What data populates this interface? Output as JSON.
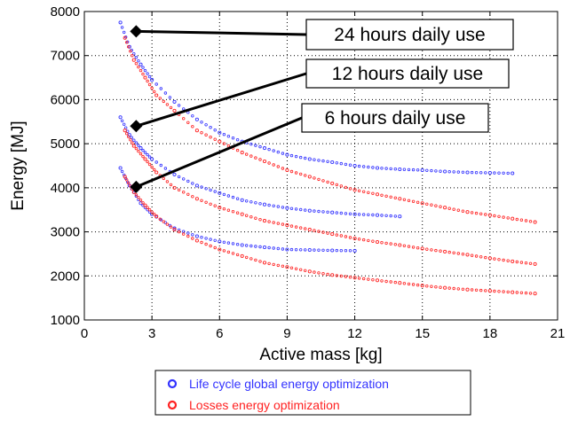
{
  "chart_data": {
    "type": "scatter",
    "title": "",
    "xlabel": "Active mass [kg]",
    "ylabel": "Energy [MJ]",
    "xlim": [
      0,
      21
    ],
    "ylim": [
      1000,
      8000
    ],
    "xticks": [
      0,
      3,
      6,
      9,
      12,
      15,
      18,
      21
    ],
    "yticks": [
      1000,
      2000,
      3000,
      4000,
      5000,
      6000,
      7000,
      8000
    ],
    "grid": true,
    "legend_position": "bottom",
    "series": [
      {
        "name": "Life cycle global energy optimization",
        "color": "#3333ff",
        "curves": [
          {
            "x": [
              1.6,
              2.0,
              2.5,
              3.0,
              4.0,
              5.0,
              6.0,
              7.0,
              8.0,
              9.0,
              10.0,
              11.0,
              12.0,
              13.0,
              14.0,
              15.0,
              16.0,
              17.0,
              18.0,
              19.0
            ],
            "y": [
              7750,
              7200,
              6800,
              6450,
              5950,
              5550,
              5250,
              5050,
              4900,
              4750,
              4650,
              4580,
              4500,
              4450,
              4420,
              4400,
              4370,
              4350,
              4340,
              4330
            ]
          },
          {
            "x": [
              1.6,
              2.0,
              2.5,
              3.0,
              4.0,
              5.0,
              6.0,
              7.0,
              8.0,
              9.0,
              10.0,
              11.0,
              12.0,
              13.0,
              14.0
            ],
            "y": [
              5600,
              5200,
              4900,
              4650,
              4300,
              4050,
              3880,
              3720,
              3620,
              3540,
              3480,
              3440,
              3400,
              3380,
              3350
            ]
          },
          {
            "x": [
              1.6,
              2.0,
              2.5,
              3.0,
              4.0,
              5.0,
              6.0,
              7.0,
              8.0,
              9.0,
              10.0,
              11.0,
              12.0
            ],
            "y": [
              4450,
              4050,
              3650,
              3400,
              3080,
              2900,
              2780,
              2700,
              2650,
              2600,
              2590,
              2580,
              2570
            ]
          }
        ]
      },
      {
        "name": "Losses energy optimization",
        "color": "#ff2222",
        "curves": [
          {
            "x": [
              1.8,
              2.2,
              2.7,
              3.2,
              4.0,
              5.0,
              6.0,
              7.0,
              8.0,
              9.0,
              10.0,
              11.0,
              12.0,
              13.0,
              14.0,
              15.0,
              16.0,
              17.0,
              18.0,
              19.0,
              20.0
            ],
            "y": [
              7400,
              6900,
              6500,
              6100,
              5750,
              5300,
              5050,
              4800,
              4600,
              4400,
              4250,
              4100,
              3950,
              3850,
              3750,
              3650,
              3550,
              3450,
              3380,
              3300,
              3220
            ]
          },
          {
            "x": [
              1.8,
              2.2,
              2.7,
              3.2,
              4.0,
              5.0,
              6.0,
              7.0,
              8.0,
              9.0,
              10.0,
              11.0,
              12.0,
              13.0,
              14.0,
              15.0,
              16.0,
              17.0,
              18.0,
              19.0,
              20.0
            ],
            "y": [
              5300,
              4950,
              4650,
              4350,
              4000,
              3750,
              3550,
              3400,
              3250,
              3150,
              3050,
              2950,
              2850,
              2770,
              2700,
              2620,
              2550,
              2480,
              2400,
              2330,
              2270
            ]
          },
          {
            "x": [
              1.8,
              2.2,
              2.7,
              3.2,
              4.0,
              5.0,
              6.0,
              7.0,
              8.0,
              9.0,
              10.0,
              11.0,
              12.0,
              13.0,
              14.0,
              15.0,
              16.0,
              17.0,
              18.0,
              19.0,
              20.0
            ],
            "y": [
              4250,
              3900,
              3600,
              3350,
              3050,
              2800,
              2600,
              2450,
              2300,
              2200,
              2100,
              2020,
              1960,
              1900,
              1840,
              1780,
              1730,
              1690,
              1660,
              1630,
              1600
            ]
          }
        ]
      }
    ],
    "annotations": [
      {
        "text": "24 hours daily use",
        "point": [
          2.3,
          7550
        ]
      },
      {
        "text": "12 hours daily use",
        "point": [
          2.3,
          5400
        ]
      },
      {
        "text": "6 hours daily use",
        "point": [
          2.3,
          4020
        ]
      }
    ]
  }
}
